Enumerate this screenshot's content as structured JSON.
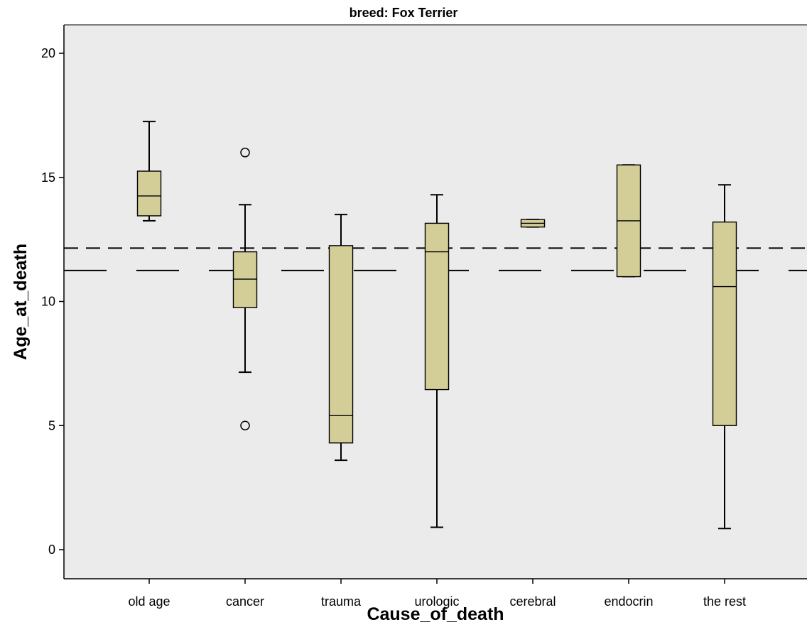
{
  "chart_data": {
    "type": "boxplot",
    "title": "breed: Fox Terrier",
    "xlabel": "Cause_of_death",
    "ylabel": "Age_at_death",
    "ylim": [
      -1.1,
      21.1
    ],
    "y_ticks": [
      0,
      5,
      10,
      15,
      20
    ],
    "categories": [
      "old age",
      "cancer",
      "trauma",
      "urologic",
      "cerebral",
      "endocrin",
      "the rest"
    ],
    "boxes": [
      {
        "category": "old age",
        "whisker_low": 13.25,
        "q1": 13.45,
        "median": 14.25,
        "q3": 15.25,
        "whisker_high": 17.25,
        "outliers": []
      },
      {
        "category": "cancer",
        "whisker_low": 7.15,
        "q1": 9.75,
        "median": 10.9,
        "q3": 12.0,
        "whisker_high": 13.9,
        "outliers": [
          16.0,
          5.0
        ]
      },
      {
        "category": "trauma",
        "whisker_low": 3.6,
        "q1": 4.3,
        "median": 5.4,
        "q3": 12.25,
        "whisker_high": 13.5,
        "outliers": []
      },
      {
        "category": "urologic",
        "whisker_low": 0.9,
        "q1": 6.45,
        "median": 12.0,
        "q3": 13.15,
        "whisker_high": 14.3,
        "outliers": []
      },
      {
        "category": "cerebral",
        "whisker_low": 13.0,
        "q1": 13.0,
        "median": 13.15,
        "q3": 13.3,
        "whisker_high": 13.3,
        "outliers": []
      },
      {
        "category": "endocrin",
        "whisker_low": 11.0,
        "q1": 11.0,
        "median": 13.25,
        "q3": 15.5,
        "whisker_high": 15.5,
        "outliers": []
      },
      {
        "category": "the rest",
        "whisker_low": 0.85,
        "q1": 5.0,
        "median": 10.6,
        "q3": 13.2,
        "whisker_high": 14.7,
        "outliers": []
      }
    ],
    "reference_lines": [
      {
        "style": "short-dash",
        "y": 12.15
      },
      {
        "style": "long-dash",
        "y": 11.25
      }
    ],
    "colors": {
      "plot_background": "#ebebeb",
      "box_fill": "#d3ce97",
      "stroke": "#000000"
    },
    "grid": false,
    "legend": "none"
  }
}
